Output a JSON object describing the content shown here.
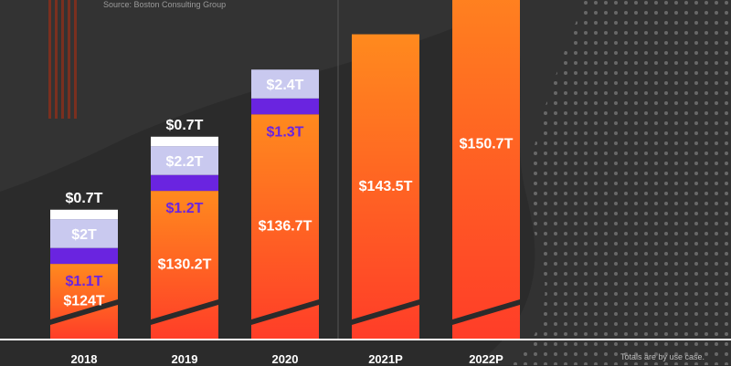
{
  "source_text": "Source: Boston Consulting Group",
  "footnote": "Totals are by use case.",
  "colors": {
    "background": "#2b2b2b",
    "bar_gradient_top": "#ff8a1e",
    "bar_gradient_bottom": "#ff3d28",
    "segment_purple": "#6a24e0",
    "segment_lavender": "#c9c9ef",
    "segment_white": "#ffffff",
    "label_white": "#ffffff",
    "label_purple": "#6a24e0",
    "label_lavender_text": "#ffffff",
    "baseline": "#ffffff"
  },
  "chart_data": {
    "type": "bar",
    "stacked": true,
    "categories": [
      "2018",
      "2019",
      "2020",
      "2021P",
      "2022P"
    ],
    "series": [
      {
        "values": [
          124,
          130.2,
          136.7,
          143.5,
          150.7
        ],
        "labels": [
          "$124T",
          "$130.2T",
          "$136.7T",
          "$143.5T",
          "$150.7T"
        ]
      },
      {
        "values": [
          1.1,
          1.2,
          1.3,
          null,
          null
        ],
        "labels": [
          "$1.1T",
          "$1.2T",
          "$1.3T",
          "",
          ""
        ]
      },
      {
        "values": [
          2,
          2.2,
          2.4,
          null,
          null
        ],
        "labels": [
          "$2T",
          "$2.2T",
          "$2.4T",
          "",
          ""
        ]
      },
      {
        "values": [
          0.7,
          0.7,
          null,
          null,
          null
        ],
        "labels": [
          "$0.7T",
          "$0.7T",
          "",
          "",
          ""
        ]
      }
    ],
    "axis_break": true,
    "grid": false,
    "legend": "none"
  }
}
